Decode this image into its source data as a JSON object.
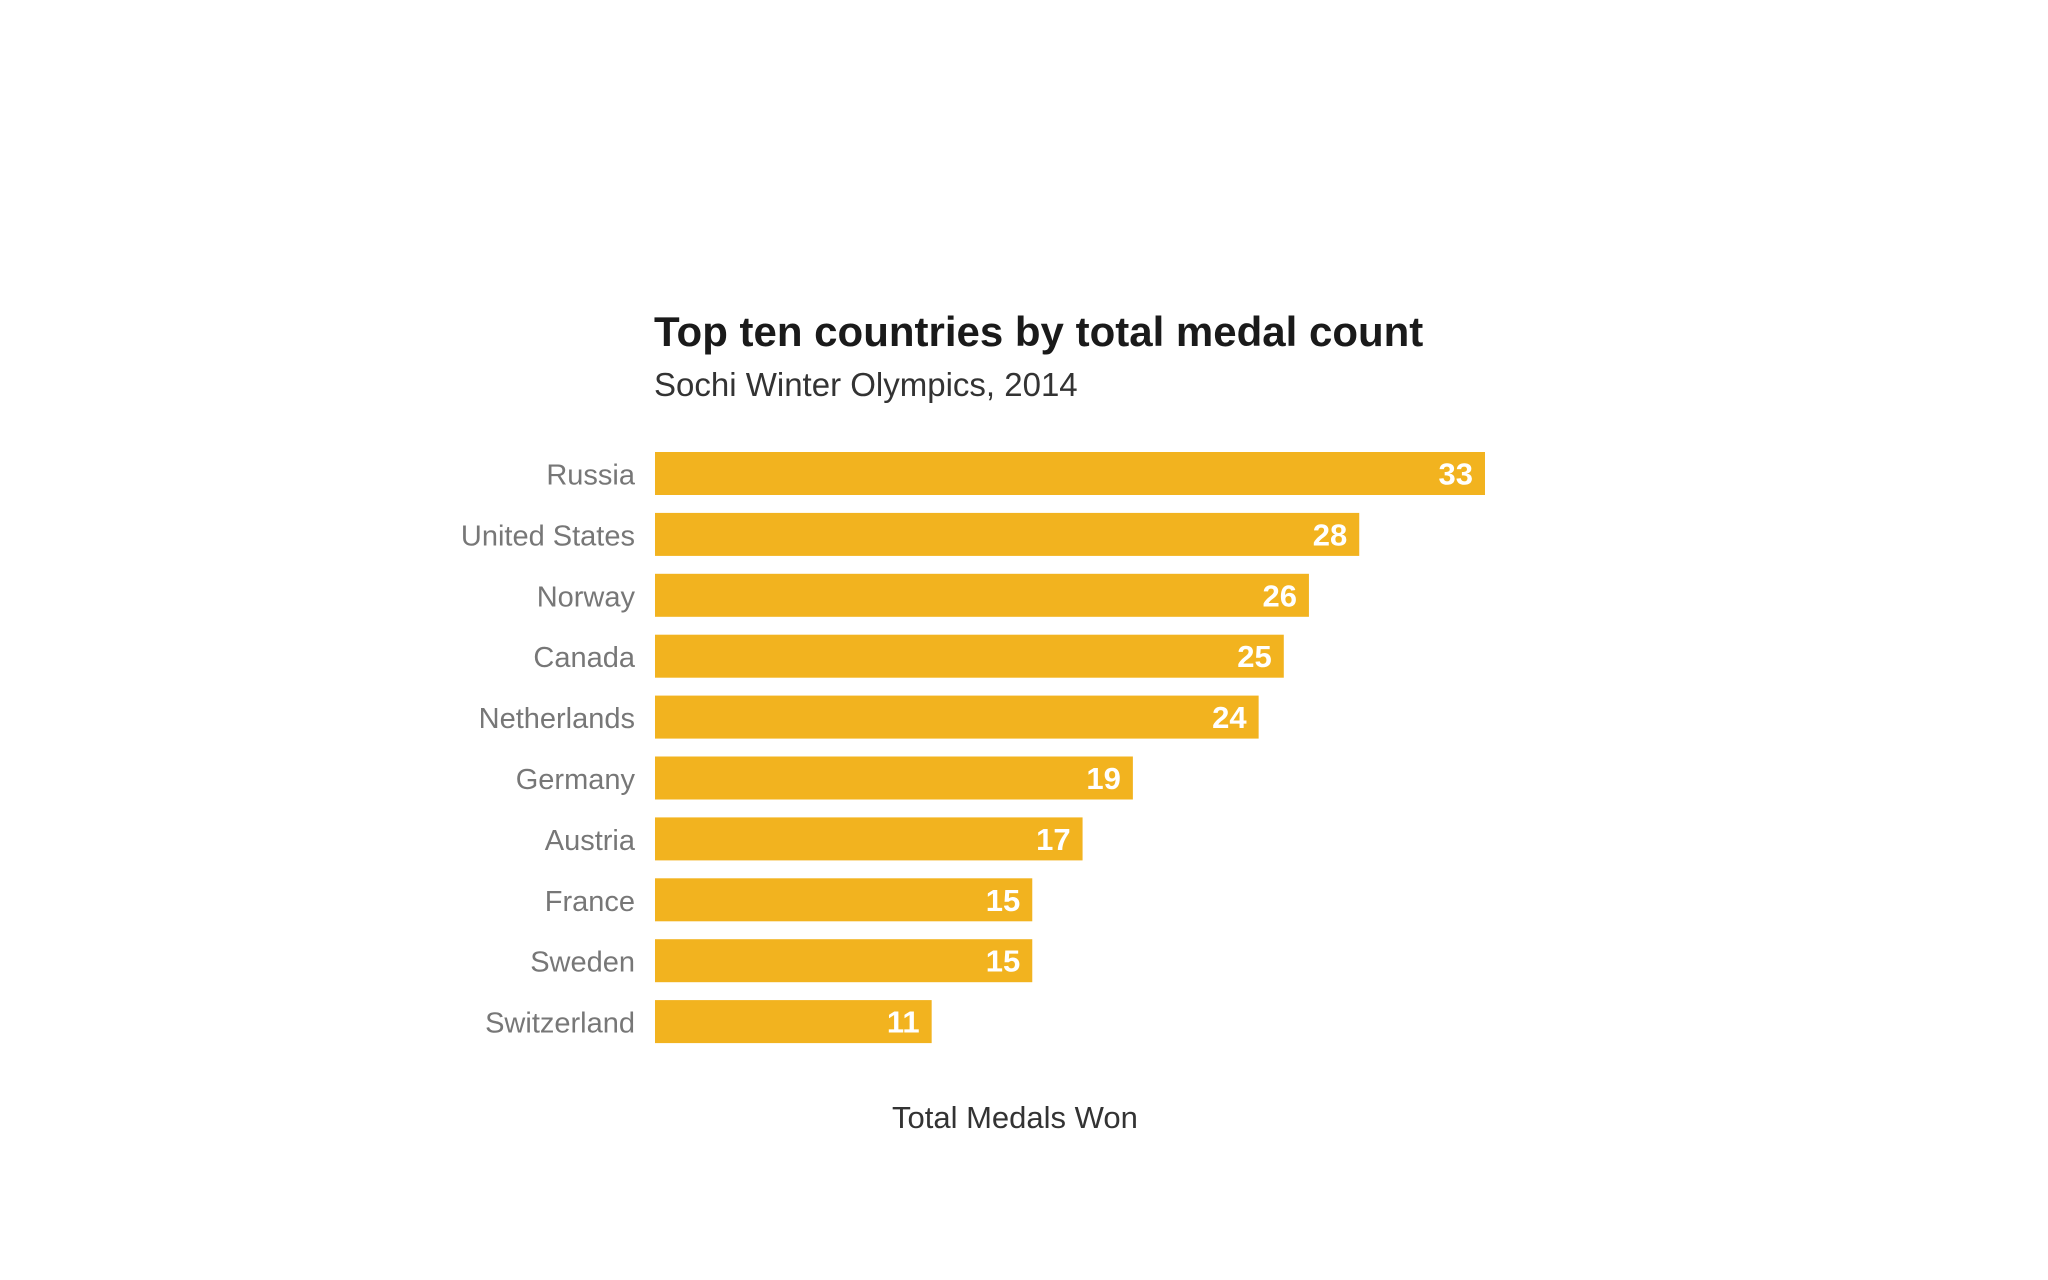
{
  "chart_data": {
    "type": "bar",
    "orientation": "horizontal",
    "title": "Top ten countries by total medal count",
    "subtitle": "Sochi Winter Olympics, 2014",
    "xlabel": "Total Medals Won",
    "ylabel": "",
    "categories": [
      "Russia",
      "United States",
      "Norway",
      "Canada",
      "Netherlands",
      "Germany",
      "Austria",
      "France",
      "Sweden",
      "Switzerland"
    ],
    "values": [
      33,
      28,
      26,
      25,
      24,
      19,
      17,
      15,
      15,
      11
    ],
    "xlim": [
      0,
      33
    ],
    "grid": false,
    "legend": "none",
    "bar_color": "#F2B31F",
    "label_color": "#ffffff",
    "category_color": "#777777"
  }
}
